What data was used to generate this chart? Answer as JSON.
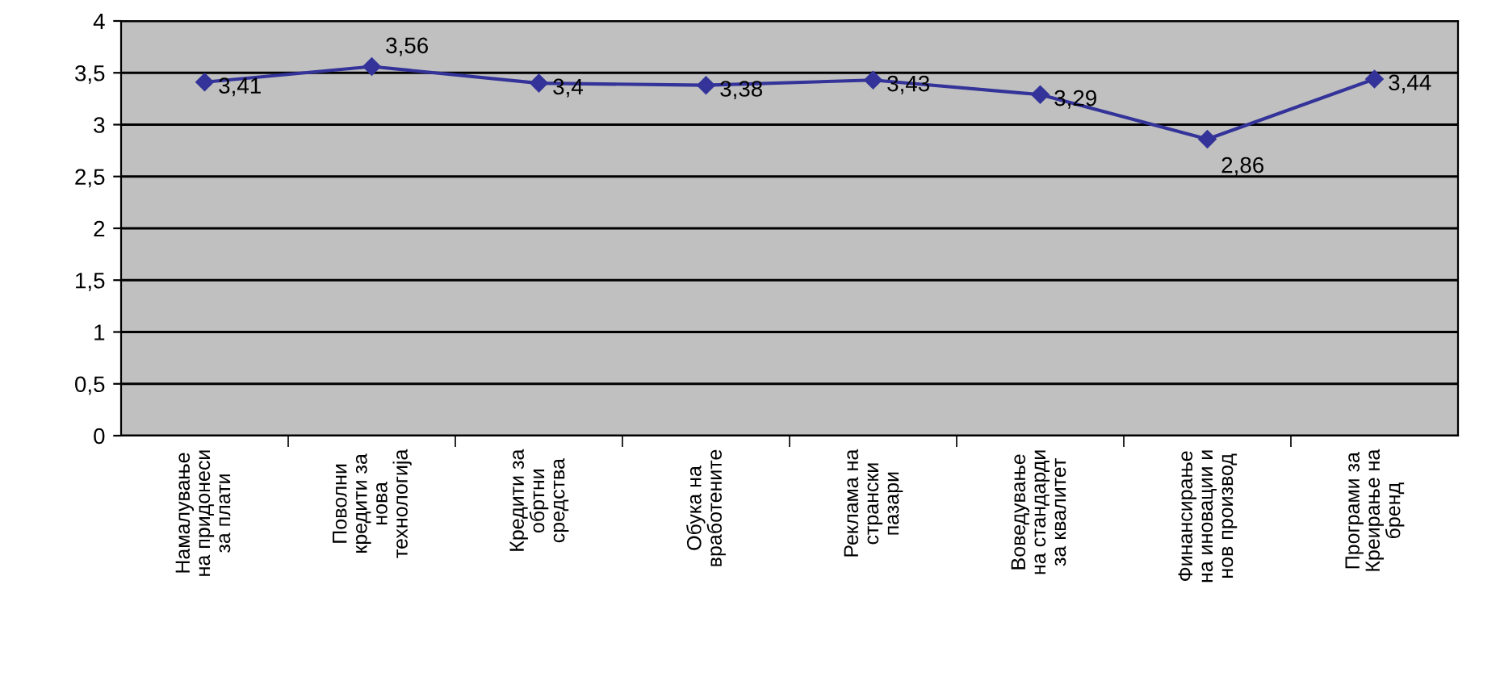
{
  "chart_data": {
    "type": "line",
    "categories": [
      "Намалување\nна придонеси\nза плати",
      "Поволни\nкредити за\nнова\nтехнологија",
      "Кредити за\nобртни\nсредства",
      "Обука на\nвработените",
      "Реклама на\nстрански\nпазари",
      "Воведување\nна стандарди\nза квалитет",
      "Финансирање\nна иновации и\nнов производ",
      "Програми за\nКреирање на\nбренд"
    ],
    "series": [
      {
        "color": "#333399",
        "values": [
          3.41,
          3.56,
          3.4,
          3.38,
          3.43,
          3.29,
          2.86,
          3.44
        ],
        "value_labels": [
          "3,41",
          "3,56",
          "3,4",
          "3,38",
          "3,43",
          "3,29",
          "2,86",
          "3,44"
        ]
      }
    ],
    "ylim": [
      0,
      4
    ],
    "yticks": [
      0,
      {
        "value": 0.5,
        "label": "0,5"
      },
      1,
      {
        "value": 1.5,
        "label": "1,5"
      },
      2,
      {
        "value": 2.5,
        "label": "2,5"
      },
      3,
      {
        "value": 3.5,
        "label": "3,5"
      },
      4
    ],
    "grid": "y",
    "marker": "diamond",
    "line_style": "solid",
    "legend": false
  }
}
